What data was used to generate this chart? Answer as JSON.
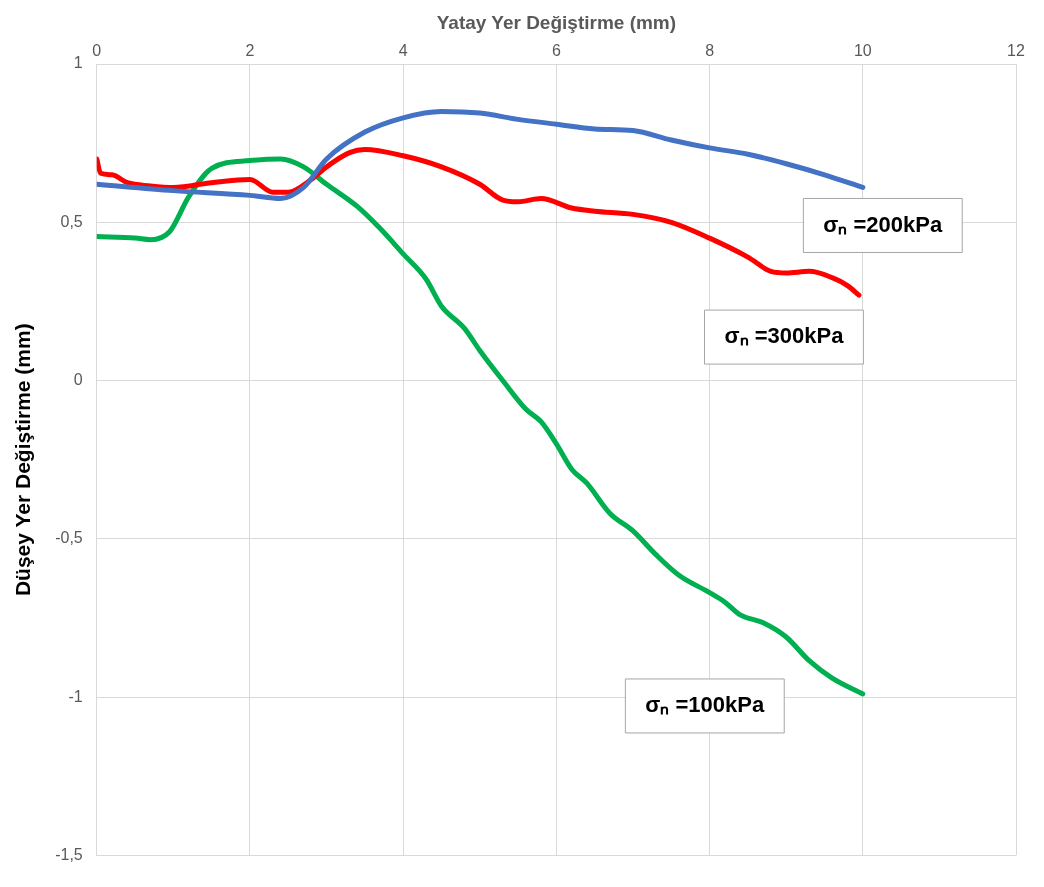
{
  "chart_data": {
    "type": "line",
    "xlabel": "Yatay Yer Değiştirme (mm)",
    "ylabel": "Düşey Yer Değiştirme (mm)",
    "xlim": [
      0,
      12
    ],
    "xticks": [
      0,
      2,
      4,
      6,
      8,
      10,
      12
    ],
    "ylim": [
      -1.5,
      1
    ],
    "yticks": [
      {
        "value": -1.5,
        "label": "-1,5"
      },
      {
        "value": -1,
        "label": "-1"
      },
      {
        "value": -0.5,
        "label": "-0,5"
      },
      0,
      {
        "value": 0.5,
        "label": "0,5"
      },
      1
    ],
    "grid": true,
    "legend": false,
    "marker": "none",
    "line_style": "solid",
    "series": [
      {
        "name": "σₙ =200kPa",
        "color": "#4472c4",
        "x": [
          0,
          1,
          2,
          2.4,
          2.7,
          3,
          3.5,
          4,
          4.5,
          5,
          5.5,
          6,
          6.5,
          7,
          7.5,
          8,
          8.5,
          9,
          9.5,
          10
        ],
        "values": [
          0.62,
          0.6,
          0.585,
          0.575,
          0.61,
          0.7,
          0.785,
          0.83,
          0.85,
          0.845,
          0.825,
          0.81,
          0.795,
          0.79,
          0.76,
          0.735,
          0.715,
          0.685,
          0.65,
          0.61
        ]
      },
      {
        "name": "σₙ =300kPa",
        "color": "#ff0000",
        "x": [
          0,
          0.05,
          0.2,
          0.4,
          0.7,
          1,
          1.5,
          2,
          2.3,
          2.5,
          2.8,
          3,
          3.3,
          3.5,
          4,
          4.5,
          5,
          5.3,
          5.5,
          5.8,
          6.2,
          6.5,
          7,
          7.5,
          8,
          8.5,
          8.8,
          9,
          9.3,
          9.6,
          9.8,
          9.95
        ],
        "values": [
          0.7,
          0.655,
          0.65,
          0.625,
          0.615,
          0.61,
          0.625,
          0.635,
          0.595,
          0.595,
          0.635,
          0.675,
          0.72,
          0.73,
          0.71,
          0.675,
          0.62,
          0.57,
          0.565,
          0.575,
          0.545,
          0.535,
          0.525,
          0.5,
          0.45,
          0.39,
          0.345,
          0.34,
          0.345,
          0.325,
          0.3,
          0.27
        ]
      },
      {
        "name": "σₙ =100kPa",
        "color": "#00b050",
        "x": [
          0,
          0.5,
          0.7,
          0.95,
          1.2,
          1.5,
          2,
          2.4,
          2.7,
          3,
          3.4,
          3.7,
          4,
          4.3,
          4.5,
          4.8,
          5,
          5.3,
          5.6,
          5.8,
          6,
          6.2,
          6.4,
          6.7,
          7,
          7.3,
          7.6,
          8,
          8.2,
          8.4,
          8.7,
          9,
          9.3,
          9.6,
          10
        ],
        "values": [
          0.455,
          0.45,
          0.445,
          0.47,
          0.58,
          0.67,
          0.695,
          0.7,
          0.675,
          0.62,
          0.55,
          0.48,
          0.4,
          0.32,
          0.235,
          0.165,
          0.095,
          0,
          -0.09,
          -0.13,
          -0.2,
          -0.28,
          -0.325,
          -0.42,
          -0.475,
          -0.55,
          -0.615,
          -0.67,
          -0.7,
          -0.74,
          -0.765,
          -0.81,
          -0.885,
          -0.94,
          -0.99
        ]
      }
    ]
  }
}
